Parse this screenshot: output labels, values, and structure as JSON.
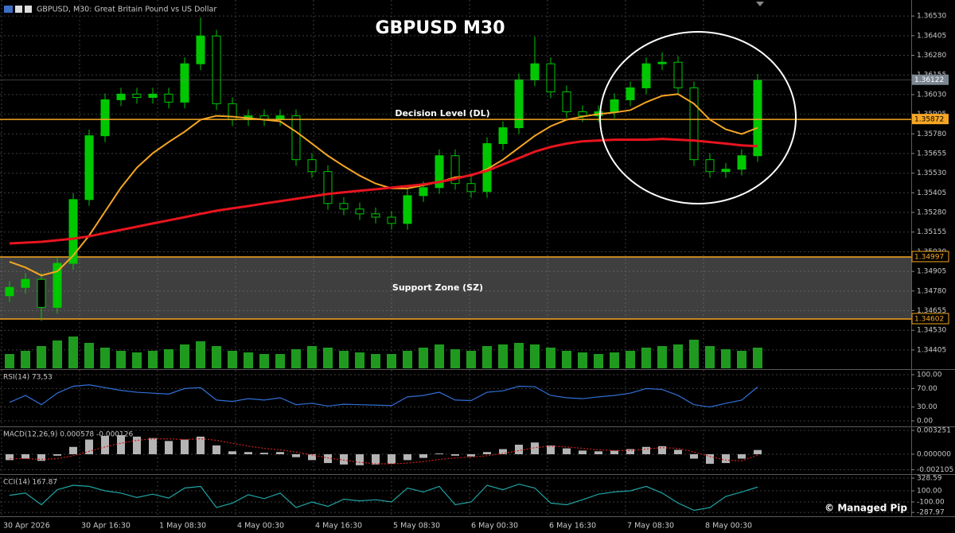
{
  "header": "GBPUSD, M30:  Great Britain Pound vs US Dollar",
  "watermark": "© Managed Pip",
  "time_labels": [
    "30 Apr 2026",
    "30 Apr 16:30",
    "1 May 08:30",
    "4 May 00:30",
    "4 May 16:30",
    "5 May 08:30",
    "6 May 00:30",
    "6 May 16:30",
    "7 May 08:30",
    "8 May 00:30"
  ],
  "chart_data": [
    {
      "type": "candlestick",
      "title": "GBPUSD M30",
      "color": "#00c800",
      "open": [
        1.3475,
        1.34803,
        1.34854,
        1.34676,
        1.34956,
        1.35362,
        1.35768,
        1.35997,
        1.36033,
        1.36012,
        1.36033,
        1.35982,
        1.36226,
        1.36403,
        1.35972,
        1.3587,
        1.35895,
        1.3587,
        1.35895,
        1.35616,
        1.3554,
        1.35337,
        1.35302,
        1.35271,
        1.3525,
        1.3521,
        1.35387,
        1.35438,
        1.35641,
        1.35464,
        1.35413,
        1.35718,
        1.35819,
        1.36124,
        1.36226,
        1.36048,
        1.35921,
        1.35895,
        1.35921,
        1.35997,
        1.36073,
        1.36226,
        1.36236,
        1.36073,
        1.35616,
        1.3554,
        1.35555,
        1.35641
      ],
      "high": [
        1.34843,
        1.34894,
        1.34894,
        1.34996,
        1.35402,
        1.35808,
        1.36037,
        1.36073,
        1.36073,
        1.36073,
        1.36073,
        1.36266,
        1.3652,
        1.36443,
        1.36012,
        1.35935,
        1.35935,
        1.35935,
        1.35935,
        1.35656,
        1.3558,
        1.35377,
        1.35342,
        1.35311,
        1.3529,
        1.35427,
        1.35478,
        1.35681,
        1.35681,
        1.35504,
        1.35758,
        1.35859,
        1.36164,
        1.364,
        1.36266,
        1.36088,
        1.35961,
        1.35961,
        1.36037,
        1.36113,
        1.36266,
        1.363,
        1.36276,
        1.36113,
        1.35656,
        1.35595,
        1.35681,
        1.36162
      ],
      "low": [
        1.3471,
        1.34763,
        1.3459,
        1.34636,
        1.34916,
        1.35322,
        1.35728,
        1.35957,
        1.35972,
        1.35972,
        1.35942,
        1.35942,
        1.36186,
        1.35932,
        1.3583,
        1.3583,
        1.3583,
        1.3583,
        1.35576,
        1.355,
        1.35297,
        1.35262,
        1.35231,
        1.3521,
        1.3517,
        1.3517,
        1.35347,
        1.35398,
        1.35424,
        1.35373,
        1.35373,
        1.35678,
        1.35779,
        1.36084,
        1.36008,
        1.35881,
        1.35855,
        1.35855,
        1.35881,
        1.35957,
        1.36033,
        1.36186,
        1.36033,
        1.35576,
        1.355,
        1.355,
        1.35515,
        1.35601
      ],
      "close": [
        1.34803,
        1.34854,
        1.34676,
        1.34956,
        1.35362,
        1.35768,
        1.35997,
        1.36033,
        1.36012,
        1.36033,
        1.35982,
        1.36226,
        1.36403,
        1.35972,
        1.3587,
        1.35895,
        1.3587,
        1.35895,
        1.35616,
        1.3554,
        1.35337,
        1.35302,
        1.35271,
        1.3525,
        1.3521,
        1.35387,
        1.35438,
        1.35641,
        1.35464,
        1.35413,
        1.35718,
        1.35819,
        1.36124,
        1.36226,
        1.36048,
        1.35921,
        1.35895,
        1.35921,
        1.35997,
        1.36073,
        1.36226,
        1.36236,
        1.36073,
        1.35616,
        1.3554,
        1.35555,
        1.35641,
        1.36122
      ],
      "series": [
        {
          "color": "#f5a623",
          "values": [
            1.34966,
            1.3493,
            1.34879,
            1.34905,
            1.35006,
            1.35133,
            1.35286,
            1.35438,
            1.35565,
            1.35657,
            1.35728,
            1.35794,
            1.3587,
            1.35895,
            1.3589,
            1.3588,
            1.3587,
            1.3586,
            1.35794,
            1.35718,
            1.35641,
            1.35575,
            1.35514,
            1.35464,
            1.35433,
            1.35433,
            1.35453,
            1.35474,
            1.35504,
            1.35514,
            1.35555,
            1.35616,
            1.35692,
            1.35768,
            1.35829,
            1.3587,
            1.3589,
            1.35906,
            1.35916,
            1.35931,
            1.35982,
            1.36022,
            1.36033,
            1.35972,
            1.3587,
            1.35809,
            1.35779,
            1.35819
          ]
        },
        {
          "color": "#e8141e",
          "values": [
            1.35083,
            1.35088,
            1.35093,
            1.35103,
            1.35113,
            1.35128,
            1.35149,
            1.35169,
            1.35189,
            1.3521,
            1.3523,
            1.3525,
            1.35271,
            1.35291,
            1.35306,
            1.35321,
            1.35337,
            1.35352,
            1.35367,
            1.35382,
            1.35398,
            1.35408,
            1.35418,
            1.35428,
            1.35438,
            1.35448,
            1.35459,
            1.35474,
            1.35494,
            1.35519,
            1.35545,
            1.35586,
            1.35626,
            1.35667,
            1.35697,
            1.35718,
            1.35733,
            1.35738,
            1.35743,
            1.35743,
            1.35743,
            1.35748,
            1.35743,
            1.35738,
            1.35728,
            1.35718,
            1.35707,
            1.35702
          ]
        }
      ],
      "volume": {
        "color": "#1f9a1f",
        "values": [
          18,
          22,
          28,
          35,
          40,
          32,
          26,
          22,
          20,
          22,
          24,
          30,
          34,
          28,
          22,
          20,
          18,
          18,
          24,
          28,
          26,
          22,
          20,
          18,
          18,
          22,
          26,
          30,
          24,
          22,
          28,
          30,
          32,
          30,
          26,
          22,
          20,
          18,
          20,
          22,
          26,
          28,
          30,
          36,
          28,
          24,
          22,
          26
        ]
      },
      "levels": [
        {
          "label": "Decision Level (DL)",
          "value": 1.35872,
          "color": "#f5a623"
        }
      ],
      "zone": {
        "label": "Support Zone (SZ)",
        "range": [
          1.34602,
          1.34997
        ],
        "color": "#f5a623"
      },
      "last_price": 1.36122,
      "ylim": [
        1.34288,
        1.36632
      ],
      "yticks": [
        {
          "value": 1.3653,
          "label": "1.36530"
        },
        {
          "value": 1.36405,
          "label": "1.36405"
        },
        {
          "value": 1.3628,
          "label": "1.36280"
        },
        {
          "value": 1.36155,
          "label": "1.36155"
        },
        {
          "value": 1.3603,
          "label": "1.36030"
        },
        {
          "value": 1.35905,
          "label": "1.35905"
        },
        {
          "value": 1.3578,
          "label": "1.35780"
        },
        {
          "value": 1.35655,
          "label": "1.35655"
        },
        {
          "value": 1.3553,
          "label": "1.35530"
        },
        {
          "value": 1.35405,
          "label": "1.35405"
        },
        {
          "value": 1.3528,
          "label": "1.35280"
        },
        {
          "value": 1.35155,
          "label": "1.35155"
        },
        {
          "value": 1.3503,
          "label": "1.35030"
        },
        {
          "value": 1.34905,
          "label": "1.34905"
        },
        {
          "value": 1.3478,
          "label": "1.34780"
        },
        {
          "value": 1.34655,
          "label": "1.34655"
        },
        {
          "value": 1.3453,
          "label": "1.34530"
        },
        {
          "value": 1.34405,
          "label": "1.34405"
        }
      ],
      "grid": true
    },
    {
      "type": "line",
      "title": "RSI(14) 73,53",
      "color": "#2f6fd6",
      "values": [
        40,
        55,
        35,
        60,
        75,
        78,
        72,
        66,
        62,
        60,
        58,
        70,
        72,
        45,
        42,
        48,
        45,
        50,
        35,
        38,
        32,
        36,
        35,
        34,
        33,
        52,
        55,
        62,
        45,
        44,
        62,
        65,
        75,
        74,
        55,
        50,
        48,
        52,
        55,
        60,
        70,
        68,
        55,
        35,
        30,
        38,
        45,
        73.53
      ],
      "ylim": [
        -10.34,
        108.62
      ],
      "yticks": [
        {
          "value": 100,
          "label": "100.00"
        },
        {
          "value": 70,
          "label": "70.00"
        },
        {
          "value": 30,
          "label": "30.00"
        },
        {
          "value": 0,
          "label": "0.00"
        }
      ],
      "grid": true
    },
    {
      "type": "macd",
      "title": "MACD(12,26,9) 0.000578 -0.000126",
      "color": "#b4b4b4",
      "signal_color": "#d02020",
      "values": [
        -0.0008,
        -0.0006,
        -0.0009,
        -0.0002,
        0.001,
        0.002,
        0.0025,
        0.0026,
        0.0024,
        0.0022,
        0.0018,
        0.002,
        0.0024,
        0.0012,
        0.0004,
        0.0003,
        0.0002,
        0.0003,
        -0.0004,
        -0.0008,
        -0.0012,
        -0.0014,
        -0.0015,
        -0.0014,
        -0.0013,
        -0.0008,
        -0.0005,
        0.0001,
        -0.0002,
        -0.0003,
        0.0003,
        0.0007,
        0.0013,
        0.0016,
        0.0012,
        0.0008,
        0.0005,
        0.0004,
        0.0005,
        0.0007,
        0.001,
        0.0011,
        0.0006,
        -0.0006,
        -0.0013,
        -0.0012,
        -0.0006,
        0.000578
      ],
      "signal": [
        -0.0006,
        -0.0006,
        -0.0007,
        -0.0006,
        -0.0002,
        0.0004,
        0.001,
        0.0015,
        0.0019,
        0.0021,
        0.0021,
        0.002,
        0.0021,
        0.0019,
        0.0015,
        0.0011,
        0.0008,
        0.0006,
        0.0003,
        -0.0001,
        -0.0005,
        -0.0008,
        -0.0011,
        -0.0013,
        -0.0013,
        -0.0012,
        -0.001,
        -0.0007,
        -0.0005,
        -0.0004,
        -0.0002,
        0.0001,
        0.0005,
        0.0009,
        0.0011,
        0.001,
        0.0008,
        0.0006,
        0.0005,
        0.0005,
        0.0007,
        0.0009,
        0.0008,
        0.0003,
        -0.0003,
        -0.0008,
        -0.0009,
        -0.000126
      ],
      "ylim": [
        -0.0026,
        0.003575
      ],
      "yticks": [
        0.003251,
        {
          "value": 0,
          "label": "0.000000"
        },
        -0.002105
      ],
      "grid": true
    },
    {
      "type": "line",
      "title": "CCI(14) 167.87",
      "color": "#1fa5a5",
      "values": [
        20,
        60,
        -150,
        120,
        200,
        180,
        100,
        60,
        -20,
        40,
        -30,
        150,
        180,
        -200,
        -120,
        30,
        -40,
        60,
        -200,
        -100,
        -180,
        -50,
        -80,
        -60,
        -100,
        150,
        80,
        180,
        -150,
        -100,
        200,
        120,
        220,
        150,
        -120,
        -150,
        -60,
        40,
        80,
        100,
        180,
        60,
        -120,
        -250,
        -200,
        0,
        80,
        167.87
      ],
      "ylim": [
        -342.9,
        371.4
      ],
      "yticks": [
        328.59,
        {
          "value": 100,
          "label": "100.00"
        },
        {
          "value": -100,
          "label": "-100.00"
        },
        -287.97
      ],
      "grid": true
    }
  ]
}
